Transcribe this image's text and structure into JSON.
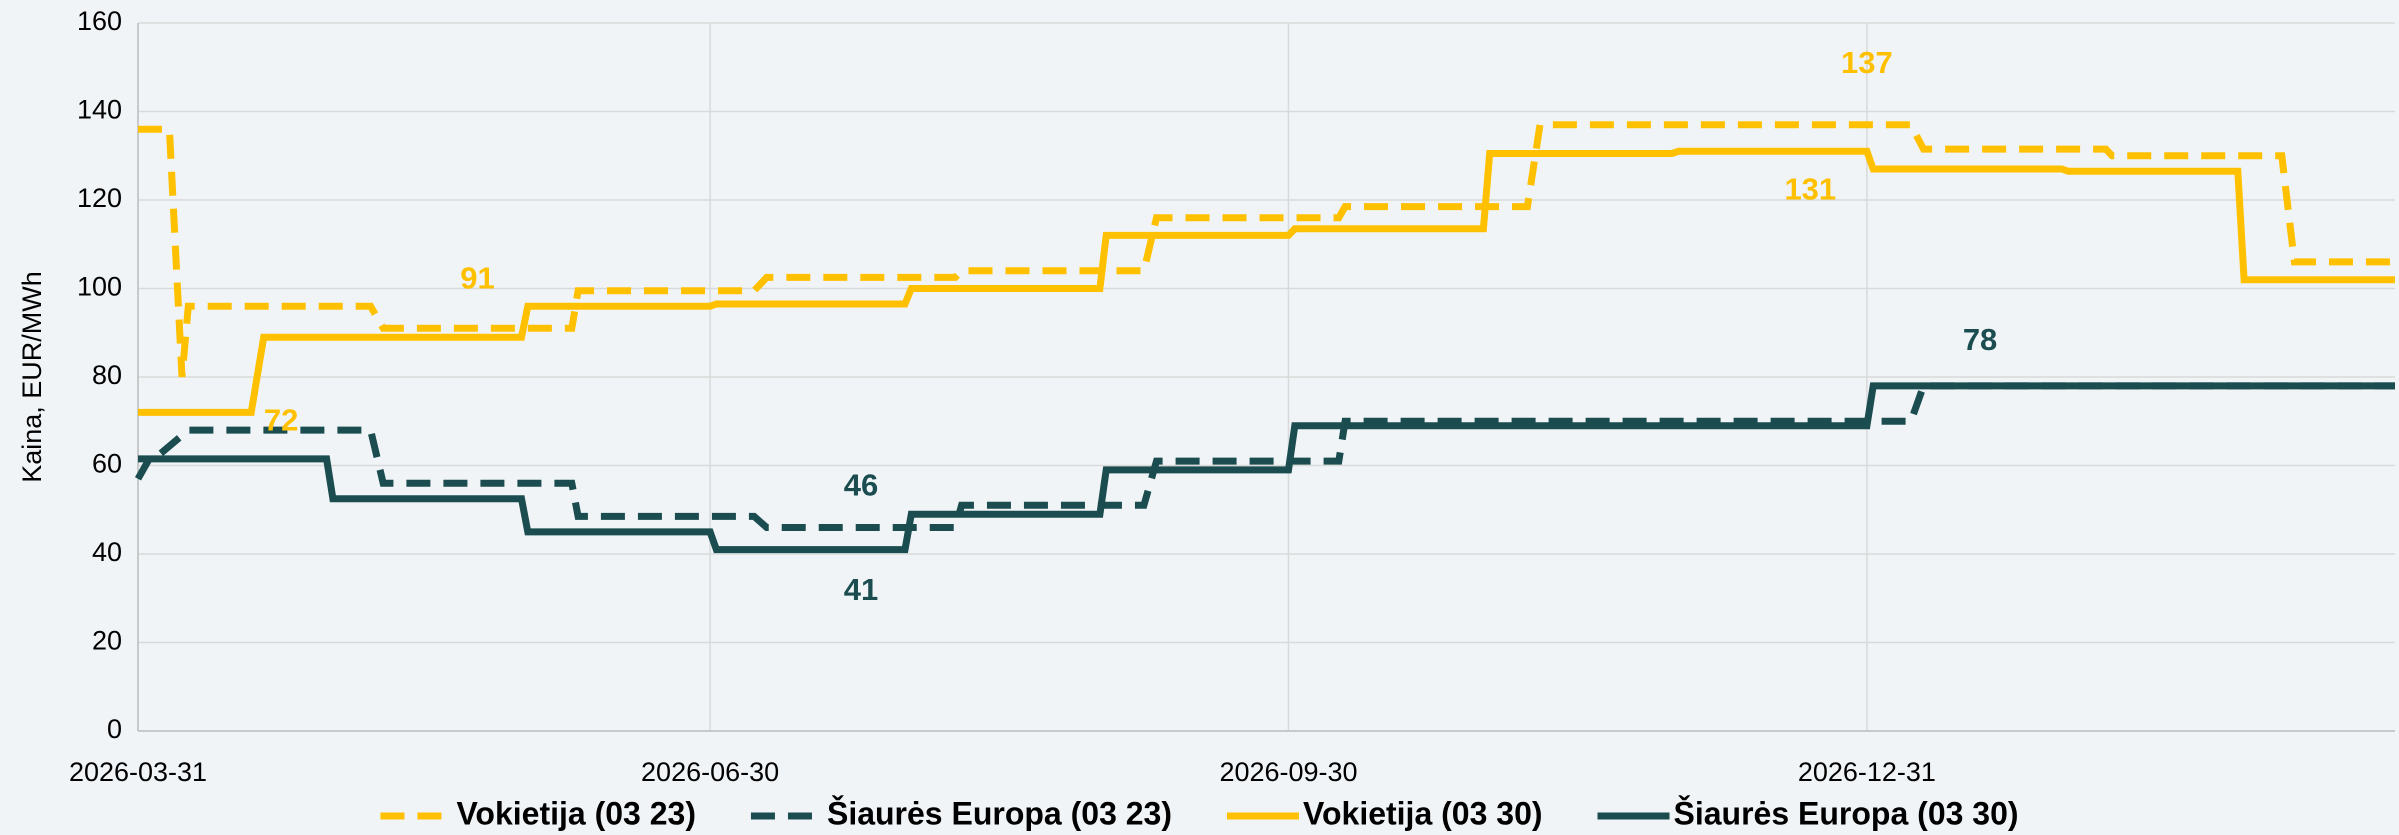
{
  "chart_data": {
    "type": "line",
    "y_label": "Kaina, EUR/MWh",
    "xlim": [
      "2026-03-31",
      "2027-03-25"
    ],
    "xticks": [
      "2026-03-31",
      "2026-06-30",
      "2026-09-30",
      "2026-12-31"
    ],
    "ylim": [
      0,
      160
    ],
    "yticks": [
      0,
      20,
      40,
      60,
      80,
      100,
      120,
      140,
      160
    ],
    "grid": true,
    "legend": "bottom",
    "series": [
      {
        "name": "Vokietija (03 23)",
        "color": "#ffc000",
        "dashed": true,
        "x": [
          "2026-03-31",
          "2026-04-05",
          "2026-04-07",
          "2026-04-08",
          "2026-05-07",
          "2026-05-09",
          "2026-06-08",
          "2026-06-09",
          "2026-07-07",
          "2026-07-09",
          "2026-08-08",
          "2026-08-09",
          "2026-09-07",
          "2026-09-09",
          "2026-10-08",
          "2026-10-09",
          "2026-11-07",
          "2026-11-09",
          "2027-01-07",
          "2027-01-09",
          "2027-02-07",
          "2027-02-08",
          "2027-03-07",
          "2027-03-09",
          "2027-03-25"
        ],
        "values": [
          136,
          136,
          80,
          96,
          96,
          91,
          91,
          99.5,
          99.5,
          102.5,
          102.5,
          104,
          104,
          116,
          116,
          118.5,
          118.5,
          137,
          137,
          131.5,
          131.5,
          130,
          130,
          106,
          106
        ]
      },
      {
        "name": "Šiaurės Europa (03 23)",
        "color": "#1b4c4f",
        "dashed": true,
        "x": [
          "2026-03-31",
          "2026-04-02",
          "2026-04-03",
          "2026-04-08",
          "2026-05-07",
          "2026-05-09",
          "2026-06-08",
          "2026-06-09",
          "2026-07-07",
          "2026-07-09",
          "2026-08-08",
          "2026-08-09",
          "2026-09-07",
          "2026-09-09",
          "2026-10-08",
          "2026-10-09",
          "2027-01-07",
          "2027-01-09",
          "2027-03-25"
        ],
        "values": [
          57,
          62,
          62,
          68,
          68,
          56,
          56,
          48.5,
          48.5,
          46,
          46,
          51,
          51,
          61,
          61,
          70,
          70,
          78,
          78
        ]
      },
      {
        "name": "Vokietija (03 30)",
        "color": "#ffc000",
        "dashed": false,
        "x": [
          "2026-03-31",
          "2026-04-18",
          "2026-04-20",
          "2026-05-31",
          "2026-06-01",
          "2026-06-30",
          "2026-07-01",
          "2026-07-31",
          "2026-08-01",
          "2026-08-31",
          "2026-09-01",
          "2026-09-30",
          "2026-10-01",
          "2026-10-31",
          "2026-11-01",
          "2026-11-30",
          "2026-12-01",
          "2026-12-31",
          "2027-01-01",
          "2027-01-31",
          "2027-02-01",
          "2027-02-28",
          "2027-03-01",
          "2027-03-25"
        ],
        "values": [
          72,
          72,
          89,
          89,
          96,
          96,
          96.5,
          96.5,
          100,
          100,
          112,
          112,
          113.5,
          113.5,
          130.5,
          130.5,
          131,
          131,
          127,
          127,
          126.5,
          126.5,
          102,
          102
        ]
      },
      {
        "name": "Šiaurės Europa (03 30)",
        "color": "#1b4c4f",
        "dashed": false,
        "x": [
          "2026-03-31",
          "2026-04-30",
          "2026-05-01",
          "2026-05-31",
          "2026-06-01",
          "2026-06-30",
          "2026-07-01",
          "2026-07-31",
          "2026-08-01",
          "2026-08-31",
          "2026-09-01",
          "2026-09-30",
          "2026-10-01",
          "2026-12-31",
          "2027-01-01",
          "2027-03-25"
        ],
        "values": [
          61.5,
          61.5,
          52.5,
          52.5,
          45,
          45,
          41,
          41,
          49,
          49,
          59,
          59,
          69,
          69,
          78,
          78
        ]
      }
    ],
    "annotations": [
      {
        "label": "72",
        "x": "2026-04-18",
        "y": 72,
        "color": "#ffc000"
      },
      {
        "label": "91",
        "x": "2026-05-24",
        "y": 91,
        "color": "#ffc000"
      },
      {
        "label": "137",
        "x": "2026-12-31",
        "y": 137,
        "color": "#ffc000"
      },
      {
        "label": "131",
        "x": "2026-12-22",
        "y": 131,
        "color": "#ffc000"
      },
      {
        "label": "46",
        "x": "2026-07-24",
        "y": 46,
        "color": "#1b4c4f"
      },
      {
        "label": "41",
        "x": "2026-07-24",
        "y": 41,
        "color": "#1b4c4f"
      },
      {
        "label": "78",
        "x": "2027-01-18",
        "y": 78,
        "color": "#1b4c4f"
      }
    ]
  }
}
